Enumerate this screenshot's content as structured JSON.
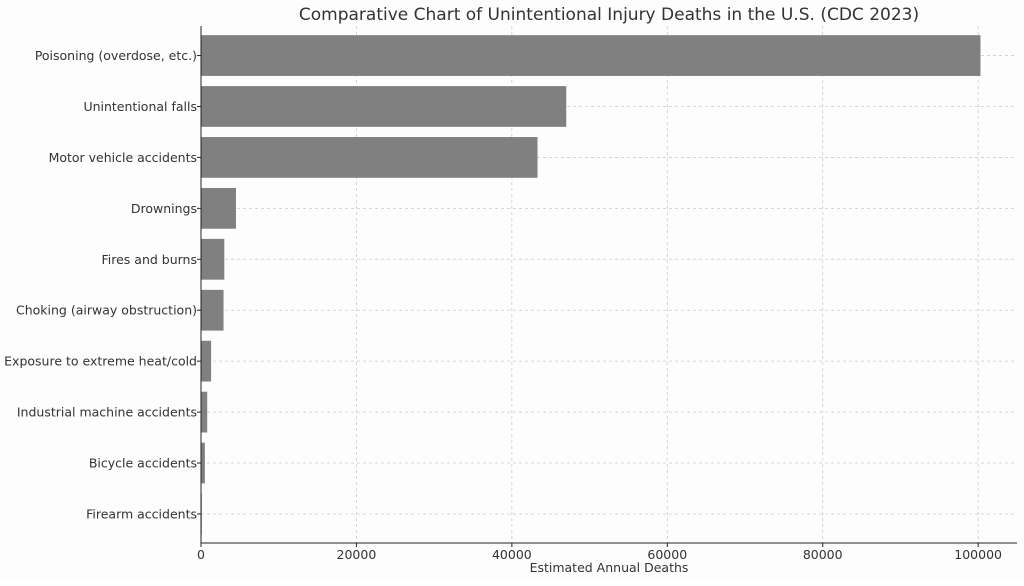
{
  "chart_data": {
    "type": "bar",
    "orientation": "horizontal",
    "title": "Comparative Chart of Unintentional Injury Deaths in the U.S. (CDC 2023)",
    "xlabel": "Estimated Annual Deaths",
    "ylabel": "",
    "xlim": [
      0,
      105000
    ],
    "xticks": [
      0,
      20000,
      40000,
      60000,
      80000,
      100000
    ],
    "xtick_labels": [
      "0",
      "20000",
      "40000",
      "60000",
      "80000",
      "100000"
    ],
    "grid": true,
    "bar_color": "#808080",
    "categories": [
      "Poisoning (overdose, etc.)",
      "Unintentional falls",
      "Motor vehicle accidents",
      "Drownings",
      "Fires and burns",
      "Choking (airway obstruction)",
      "Exposure to extreme heat/cold",
      "Industrial machine accidents",
      "Bicycle accidents",
      "Firearm accidents"
    ],
    "values": [
      100300,
      47000,
      43300,
      4500,
      3000,
      2900,
      1300,
      800,
      500,
      100
    ]
  }
}
